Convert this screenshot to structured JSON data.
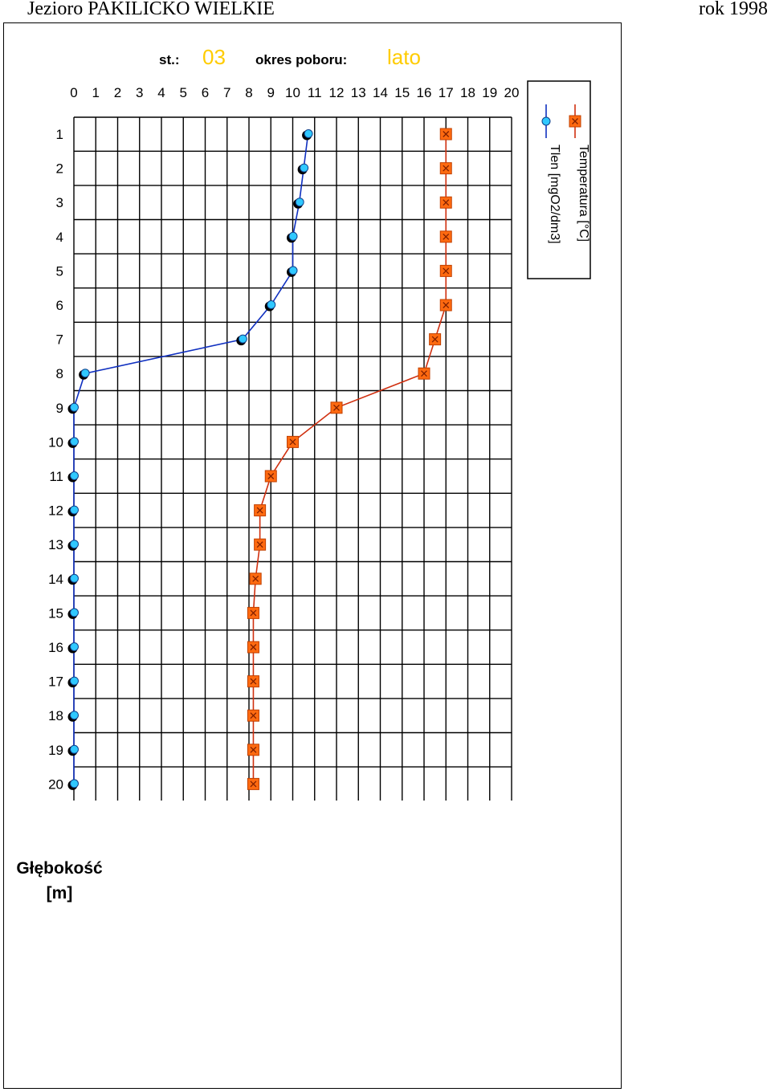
{
  "page": {
    "header_left": "Jezioro PAKILICKO WIELKIE",
    "header_right": "rok 1998"
  },
  "chart_info": {
    "station_label": "st.:",
    "station_value": "03",
    "period_label": "okres poboru:",
    "period_value": "lato",
    "highlight_color": "#ffcc00"
  },
  "chart_data": {
    "type": "line",
    "title": "",
    "xlabel": "",
    "ylabel": "Głębokość [m]",
    "ylabel_lines": [
      "Głębokość",
      "[m]"
    ],
    "x_axis_position": "top",
    "y_axis_inverted": true,
    "xlim": [
      0,
      20
    ],
    "ylim": [
      0,
      20
    ],
    "x_ticks": [
      "0",
      "1",
      "2",
      "3",
      "4",
      "5",
      "6",
      "7",
      "8",
      "9",
      "10",
      "11",
      "12",
      "13",
      "14",
      "15",
      "16",
      "17",
      "18",
      "19",
      "20"
    ],
    "y_ticks": [
      "1",
      "2",
      "3",
      "4",
      "5",
      "6",
      "7",
      "8",
      "9",
      "10",
      "11",
      "12",
      "13",
      "14",
      "15",
      "16",
      "17",
      "18",
      "19",
      "20"
    ],
    "grid": true,
    "legend_position": "right-top, rotated vertical",
    "depths": [
      1,
      2,
      3,
      4,
      5,
      6,
      7,
      8,
      9,
      10,
      11,
      12,
      13,
      14,
      15,
      16,
      17,
      18,
      19,
      20
    ],
    "series": [
      {
        "name": "Temperatura [°C]",
        "color": "#d03010",
        "marker": "orange-square-x",
        "marker_color": "#ff6a10",
        "values": [
          17.0,
          17.0,
          17.0,
          17.0,
          17.0,
          17.0,
          16.5,
          16.0,
          12.0,
          10.0,
          9.0,
          8.5,
          8.5,
          8.3,
          8.2,
          8.2,
          8.2,
          8.2,
          8.2,
          8.2
        ]
      },
      {
        "name": "Tlen [mgO2/dm3]",
        "color": "#1030c0",
        "marker": "cyan-circle",
        "marker_color": "#30c8ff",
        "values": [
          10.7,
          10.5,
          10.3,
          10.0,
          10.0,
          9.0,
          7.7,
          0.5,
          0.0,
          0.0,
          0.0,
          0.0,
          0.0,
          0.0,
          0.0,
          0.0,
          0.0,
          0.0,
          0.0,
          0.0
        ]
      }
    ]
  }
}
